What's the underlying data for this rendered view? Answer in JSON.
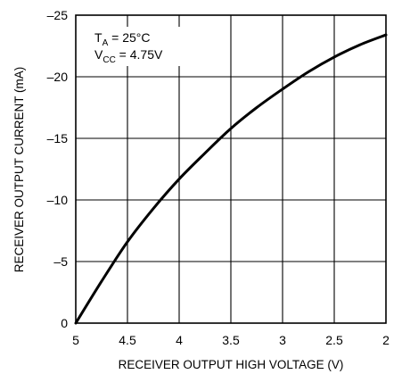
{
  "chart_data": {
    "type": "line",
    "title": "",
    "xlabel": "RECEIVER OUTPUT HIGH VOLTAGE (V)",
    "ylabel": "RECEIVER OUTPUT CURRENT (mA)",
    "xlim": [
      5,
      2
    ],
    "ylim": [
      0,
      -25
    ],
    "x_ticks": [
      "5",
      "4.5",
      "4",
      "3.5",
      "3",
      "2.5",
      "2"
    ],
    "y_ticks": [
      "0",
      "–5",
      "–10",
      "–15",
      "–20",
      "–25"
    ],
    "grid": true,
    "annotations": [
      {
        "main": "T",
        "sub": "A",
        "rest": " = 25°C"
      },
      {
        "main": "V",
        "sub": "CC",
        "rest": " = 4.75V"
      }
    ],
    "series": [
      {
        "x": [
          5.0,
          4.75,
          4.5,
          4.25,
          4.0,
          3.75,
          3.5,
          3.25,
          3.0,
          2.75,
          2.5,
          2.25,
          2.0
        ],
        "values": [
          0,
          -3.4,
          -6.6,
          -9.3,
          -11.7,
          -13.8,
          -15.8,
          -17.5,
          -19.0,
          -20.4,
          -21.6,
          -22.6,
          -23.4
        ]
      }
    ]
  }
}
